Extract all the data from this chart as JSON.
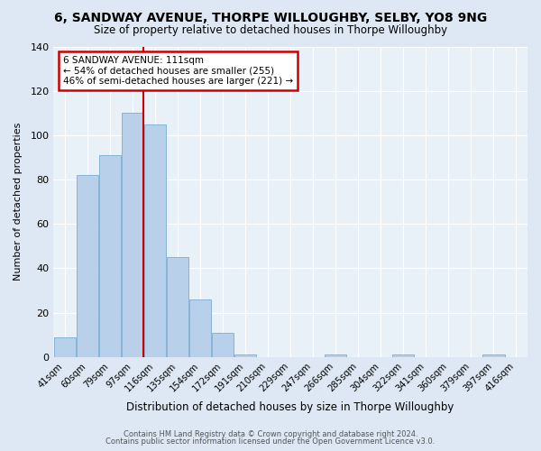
{
  "title1": "6, SANDWAY AVENUE, THORPE WILLOUGHBY, SELBY, YO8 9NG",
  "title2": "Size of property relative to detached houses in Thorpe Willoughby",
  "xlabel": "Distribution of detached houses by size in Thorpe Willoughby",
  "ylabel": "Number of detached properties",
  "bar_labels": [
    "41sqm",
    "60sqm",
    "79sqm",
    "97sqm",
    "116sqm",
    "135sqm",
    "154sqm",
    "172sqm",
    "191sqm",
    "210sqm",
    "229sqm",
    "247sqm",
    "266sqm",
    "285sqm",
    "304sqm",
    "322sqm",
    "341sqm",
    "360sqm",
    "379sqm",
    "397sqm",
    "416sqm"
  ],
  "bar_values": [
    9,
    82,
    91,
    110,
    105,
    45,
    26,
    11,
    1,
    0,
    0,
    0,
    1,
    0,
    0,
    1,
    0,
    0,
    0,
    1,
    0
  ],
  "bar_color": "#b8d0ea",
  "bar_edge_color": "#7aadd4",
  "vline_color": "#cc0000",
  "annotation_title": "6 SANDWAY AVENUE: 111sqm",
  "annotation_line1": "← 54% of detached houses are smaller (255)",
  "annotation_line2": "46% of semi-detached houses are larger (221) →",
  "annotation_box_color": "#ffffff",
  "annotation_box_edge": "#cc0000",
  "ylim": [
    0,
    140
  ],
  "yticks": [
    0,
    20,
    40,
    60,
    80,
    100,
    120,
    140
  ],
  "bg_color": "#dde8f4",
  "plot_bg_color": "#e8f0f8",
  "footnote1": "Contains HM Land Registry data © Crown copyright and database right 2024.",
  "footnote2": "Contains public sector information licensed under the Open Government Licence v3.0."
}
